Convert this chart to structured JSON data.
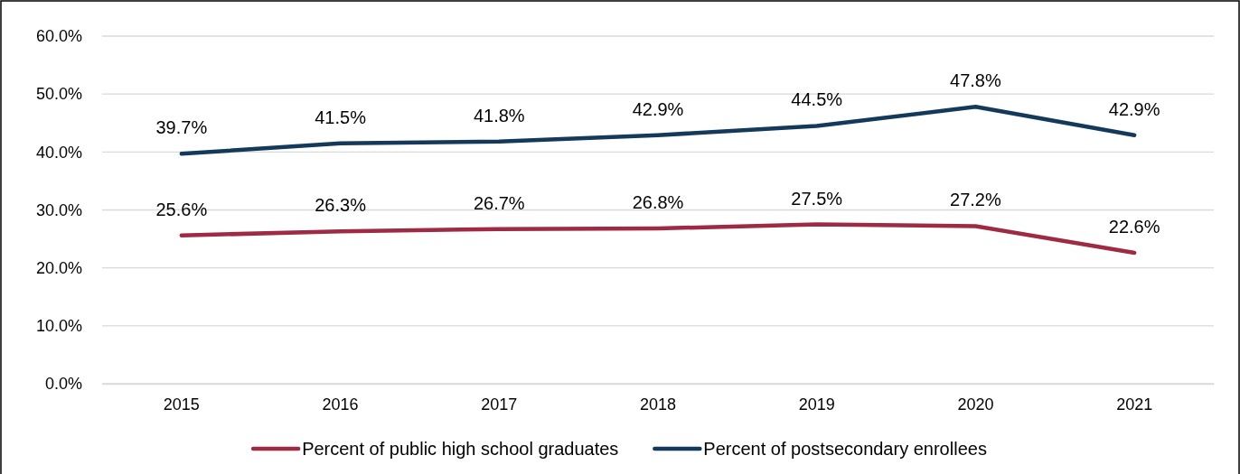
{
  "chart_data": {
    "type": "line",
    "categories": [
      "2015",
      "2016",
      "2017",
      "2018",
      "2019",
      "2020",
      "2021"
    ],
    "series": [
      {
        "name": "Percent of public high school graduates",
        "color": "#9e2a44",
        "values": [
          25.6,
          26.3,
          26.7,
          26.8,
          27.5,
          27.2,
          22.6
        ],
        "value_labels": [
          "25.6%",
          "26.3%",
          "26.7%",
          "26.8%",
          "27.5%",
          "27.2%",
          "22.6%"
        ]
      },
      {
        "name": "Percent of postsecondary enrollees",
        "color": "#14395a",
        "values": [
          39.7,
          41.5,
          41.8,
          42.9,
          44.5,
          47.8,
          42.9
        ],
        "value_labels": [
          "39.7%",
          "41.5%",
          "41.8%",
          "42.9%",
          "44.5%",
          "47.8%",
          "42.9%"
        ]
      }
    ],
    "ylim": [
      0,
      60
    ],
    "yticks": [
      {
        "value": 0,
        "label": "0.0%"
      },
      {
        "value": 10,
        "label": "10.0%"
      },
      {
        "value": 20,
        "label": "20.0%"
      },
      {
        "value": 30,
        "label": "30.0%"
      },
      {
        "value": 40,
        "label": "40.0%"
      },
      {
        "value": 50,
        "label": "50.0%"
      },
      {
        "value": 60,
        "label": "60.0%"
      }
    ],
    "grid": "y",
    "legend": "bottom",
    "marker": "none",
    "line_style": "solid"
  }
}
